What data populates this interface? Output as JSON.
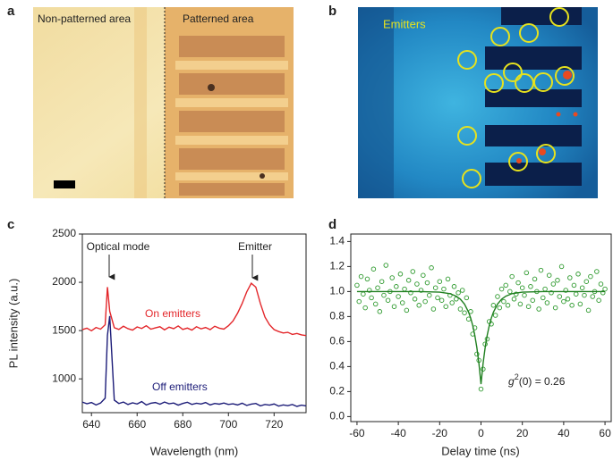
{
  "panels": {
    "a": {
      "label": "a",
      "left_region": "Non-patterned area",
      "right_region": "Patterned area"
    },
    "b": {
      "label": "b",
      "annotation": "Emitters"
    }
  },
  "chart_data": [
    {
      "type": "line",
      "panel_label": "c",
      "x_label": "Wavelength (nm)",
      "y_label": "PL intensity (a.u.)",
      "xlim": [
        636,
        734
      ],
      "xticks": [
        640,
        660,
        680,
        700,
        720
      ],
      "ylim": [
        650,
        2500
      ],
      "yticks": [
        1000,
        1500,
        2000,
        2500
      ],
      "annotations": [
        "Optical mode",
        "Emitter"
      ],
      "series": [
        {
          "name": "On emitters",
          "color": "#e3262a",
          "x": [
            636,
            638,
            640,
            642,
            644,
            646,
            647,
            648,
            650,
            652,
            654,
            656,
            658,
            660,
            662,
            664,
            666,
            668,
            670,
            672,
            674,
            676,
            678,
            680,
            682,
            684,
            686,
            688,
            690,
            692,
            694,
            696,
            698,
            700,
            702,
            704,
            706,
            708,
            710,
            712,
            714,
            716,
            718,
            720,
            722,
            724,
            726,
            728,
            730,
            732,
            734
          ],
          "values": [
            1510,
            1525,
            1498,
            1532,
            1515,
            1560,
            1950,
            1700,
            1530,
            1512,
            1545,
            1520,
            1505,
            1538,
            1522,
            1550,
            1515,
            1528,
            1540,
            1508,
            1535,
            1520,
            1548,
            1512,
            1526,
            1505,
            1540,
            1518,
            1532,
            1510,
            1545,
            1525,
            1515,
            1550,
            1600,
            1680,
            1780,
            1900,
            1990,
            1950,
            1780,
            1640,
            1560,
            1510,
            1490,
            1475,
            1482,
            1460,
            1470,
            1455,
            1448
          ]
        },
        {
          "name": "Off emitters",
          "color": "#1c1c78",
          "x": [
            636,
            638,
            640,
            642,
            644,
            646,
            647,
            648,
            650,
            652,
            654,
            656,
            658,
            660,
            662,
            664,
            666,
            668,
            670,
            672,
            674,
            676,
            678,
            680,
            682,
            684,
            686,
            688,
            690,
            692,
            694,
            696,
            698,
            700,
            702,
            704,
            706,
            708,
            710,
            712,
            714,
            716,
            718,
            720,
            722,
            724,
            726,
            728,
            730,
            732,
            734
          ],
          "values": [
            760,
            742,
            755,
            730,
            750,
            800,
            1450,
            1650,
            780,
            745,
            760,
            735,
            752,
            740,
            765,
            730,
            748,
            755,
            738,
            760,
            742,
            750,
            728,
            745,
            758,
            735,
            748,
            740,
            755,
            730,
            745,
            738,
            750,
            735,
            742,
            730,
            748,
            725,
            738,
            745,
            720,
            735,
            728,
            740,
            718,
            730,
            722,
            735,
            715,
            728,
            720
          ]
        }
      ]
    },
    {
      "type": "scatter",
      "panel_label": "d",
      "x_label": "Delay time (ns)",
      "xlim": [
        -63,
        63
      ],
      "xticks": [
        -60,
        -40,
        -20,
        0,
        20,
        40,
        60
      ],
      "ylim": [
        -0.04,
        1.46
      ],
      "yticks": [
        {
          "value": 0,
          "label": "0.0"
        },
        0.2,
        0.4,
        0.6,
        0.8,
        {
          "value": 1,
          "label": "1.0"
        },
        1.2,
        1.4
      ],
      "annotation": {
        "base": "g",
        "sup": "2",
        "rest": "(0) = 0.26"
      },
      "series": [
        {
          "mode": "markers",
          "color": "#2f9a2f",
          "x": [
            -60,
            -59,
            -58,
            -57,
            -56,
            -55,
            -54,
            -53,
            -52,
            -51,
            -50,
            -49,
            -48,
            -47,
            -46,
            -45,
            -44,
            -43,
            -42,
            -41,
            -40,
            -39,
            -38,
            -37,
            -36,
            -35,
            -34,
            -33,
            -32,
            -31,
            -30,
            -29,
            -28,
            -27,
            -26,
            -25,
            -24,
            -23,
            -22,
            -21,
            -20,
            -19,
            -18,
            -17,
            -16,
            -15,
            -14,
            -13,
            -12,
            -11,
            -10,
            -9,
            -8,
            -7,
            -6,
            -5,
            -4,
            -3,
            -2,
            -1,
            0,
            1,
            2,
            3,
            4,
            5,
            6,
            7,
            8,
            9,
            10,
            11,
            12,
            13,
            14,
            15,
            16,
            17,
            18,
            19,
            20,
            21,
            22,
            23,
            24,
            25,
            26,
            27,
            28,
            29,
            30,
            31,
            32,
            33,
            34,
            35,
            36,
            37,
            38,
            39,
            40,
            41,
            42,
            43,
            44,
            45,
            46,
            47,
            48,
            49,
            50,
            51,
            52,
            53,
            54,
            55,
            56,
            57,
            58,
            59,
            60
          ],
          "values": [
            1.05,
            0.92,
            1.12,
            0.98,
            0.87,
            1.1,
            1.01,
            0.95,
            1.18,
            0.9,
            1.03,
            0.84,
            1.08,
            0.97,
            1.21,
            0.93,
            1.0,
            1.11,
            0.88,
            1.04,
            0.96,
            1.14,
            0.91,
            1.02,
            0.85,
            1.09,
            0.99,
            1.16,
            0.94,
            1.06,
            0.89,
            1.01,
            1.13,
            0.92,
            1.07,
            0.97,
            1.19,
            0.86,
            1.03,
            0.95,
            1.08,
            0.93,
            1.02,
            0.88,
            1.1,
            0.97,
            0.91,
            1.04,
            0.94,
            0.99,
            0.86,
            1.01,
            0.83,
            0.95,
            0.78,
            0.84,
            0.66,
            0.71,
            0.5,
            0.45,
            0.22,
            0.38,
            0.58,
            0.62,
            0.76,
            0.74,
            0.89,
            0.81,
            0.96,
            0.87,
            1.02,
            0.92,
            1.05,
            0.89,
            1.0,
            1.12,
            0.94,
            0.98,
            1.07,
            0.9,
            1.03,
            0.97,
            1.15,
            0.88,
            1.04,
            0.93,
            1.1,
            1.0,
            0.86,
            1.17,
            0.95,
            1.02,
            0.91,
            1.13,
            0.99,
            1.06,
            0.87,
            1.09,
            0.96,
            1.2,
            0.92,
            1.01,
            0.94,
            1.11,
            0.89,
            1.05,
            0.98,
            1.14,
            0.9,
            1.03,
            0.97,
            1.08,
            0.85,
            1.12,
            0.96,
            1.0,
            1.16,
            0.93,
            1.06,
            0.99,
            1.02
          ]
        },
        {
          "mode": "line",
          "color": "#1f7f1f",
          "x": [
            -60,
            -30,
            -20,
            -15,
            -12,
            -10,
            -8,
            -6,
            -5,
            -4,
            -3,
            -2,
            -1,
            0,
            1,
            2,
            3,
            4,
            5,
            6,
            8,
            10,
            12,
            15,
            20,
            30,
            60
          ],
          "values": [
            1.0,
            1.0,
            0.995,
            0.983,
            0.963,
            0.939,
            0.9,
            0.835,
            0.788,
            0.728,
            0.65,
            0.551,
            0.424,
            0.26,
            0.424,
            0.551,
            0.65,
            0.728,
            0.788,
            0.835,
            0.9,
            0.939,
            0.963,
            0.983,
            0.995,
            1.0,
            1.0
          ]
        }
      ]
    }
  ]
}
